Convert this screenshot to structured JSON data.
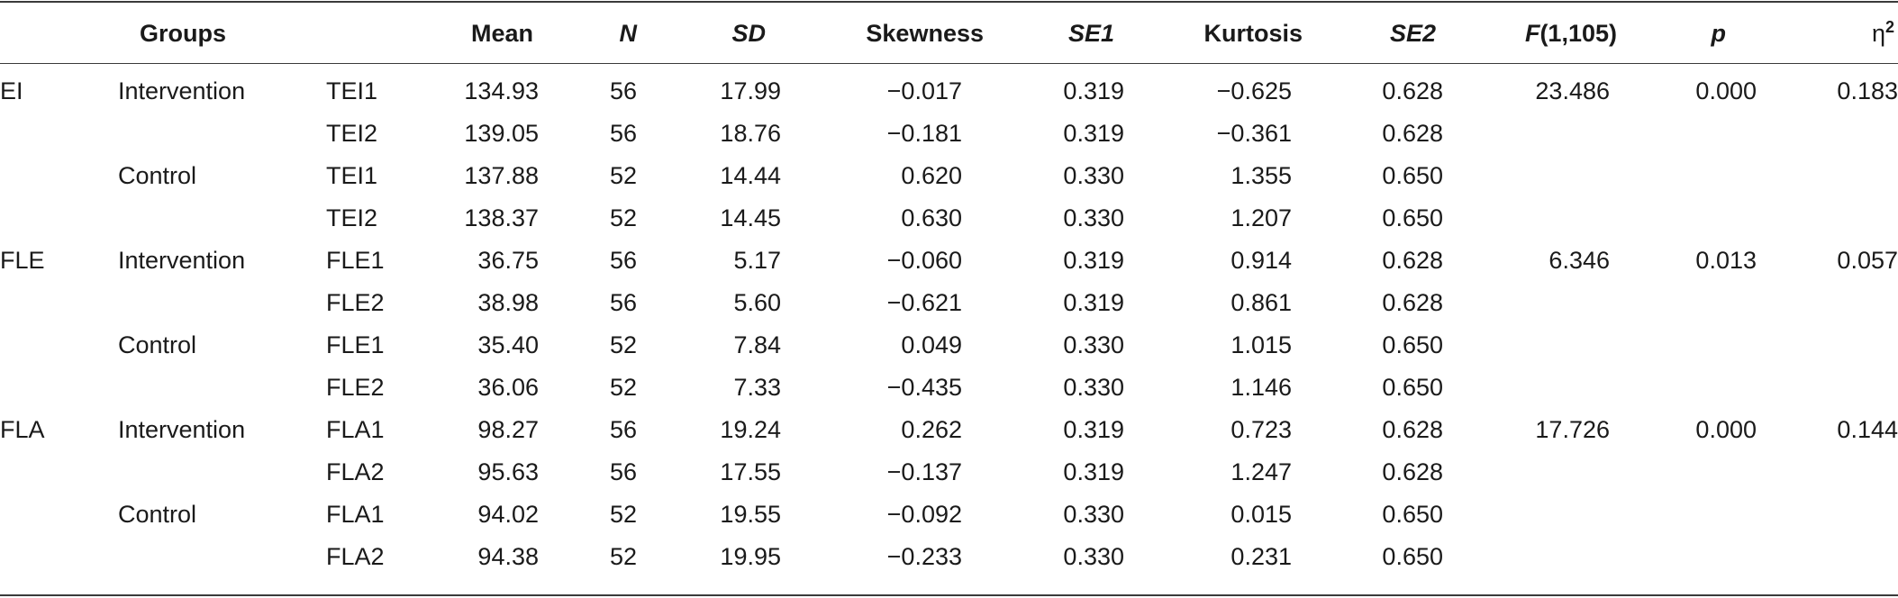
{
  "table": {
    "headers": {
      "groups": "Groups",
      "mean": "Mean",
      "n": "N",
      "sd": "SD",
      "skewness": "Skewness",
      "se1": "SE1",
      "kurtosis": "Kurtosis",
      "se2": "SE2",
      "f_label": "F",
      "f_df": "(1,105)",
      "p": "p",
      "eta": "η",
      "eta_sup": "2"
    },
    "rows": [
      {
        "construct": "EI",
        "group": "Intervention",
        "measure": "TEI1",
        "mean": "134.93",
        "n": "56",
        "sd": "17.99",
        "skewness": "−0.017",
        "se1": "0.319",
        "kurtosis": "−0.625",
        "se2": "0.628",
        "f": "23.486",
        "p": "0.000",
        "eta2": "0.183"
      },
      {
        "construct": "",
        "group": "",
        "measure": "TEI2",
        "mean": "139.05",
        "n": "56",
        "sd": "18.76",
        "skewness": "−0.181",
        "se1": "0.319",
        "kurtosis": "−0.361",
        "se2": "0.628",
        "f": "",
        "p": "",
        "eta2": ""
      },
      {
        "construct": "",
        "group": "Control",
        "measure": "TEI1",
        "mean": "137.88",
        "n": "52",
        "sd": "14.44",
        "skewness": "0.620",
        "se1": "0.330",
        "kurtosis": "1.355",
        "se2": "0.650",
        "f": "",
        "p": "",
        "eta2": ""
      },
      {
        "construct": "",
        "group": "",
        "measure": "TEI2",
        "mean": "138.37",
        "n": "52",
        "sd": "14.45",
        "skewness": "0.630",
        "se1": "0.330",
        "kurtosis": "1.207",
        "se2": "0.650",
        "f": "",
        "p": "",
        "eta2": ""
      },
      {
        "construct": "FLE",
        "group": "Intervention",
        "measure": "FLE1",
        "mean": "36.75",
        "n": "56",
        "sd": "5.17",
        "skewness": "−0.060",
        "se1": "0.319",
        "kurtosis": "0.914",
        "se2": "0.628",
        "f": "6.346",
        "p": "0.013",
        "eta2": "0.057"
      },
      {
        "construct": "",
        "group": "",
        "measure": "FLE2",
        "mean": "38.98",
        "n": "56",
        "sd": "5.60",
        "skewness": "−0.621",
        "se1": "0.319",
        "kurtosis": "0.861",
        "se2": "0.628",
        "f": "",
        "p": "",
        "eta2": ""
      },
      {
        "construct": "",
        "group": "Control",
        "measure": "FLE1",
        "mean": "35.40",
        "n": "52",
        "sd": "7.84",
        "skewness": "0.049",
        "se1": "0.330",
        "kurtosis": "1.015",
        "se2": "0.650",
        "f": "",
        "p": "",
        "eta2": ""
      },
      {
        "construct": "",
        "group": "",
        "measure": "FLE2",
        "mean": "36.06",
        "n": "52",
        "sd": "7.33",
        "skewness": "−0.435",
        "se1": "0.330",
        "kurtosis": "1.146",
        "se2": "0.650",
        "f": "",
        "p": "",
        "eta2": ""
      },
      {
        "construct": "FLA",
        "group": "Intervention",
        "measure": "FLA1",
        "mean": "98.27",
        "n": "56",
        "sd": "19.24",
        "skewness": "0.262",
        "se1": "0.319",
        "kurtosis": "0.723",
        "se2": "0.628",
        "f": "17.726",
        "p": "0.000",
        "eta2": "0.144"
      },
      {
        "construct": "",
        "group": "",
        "measure": "FLA2",
        "mean": "95.63",
        "n": "56",
        "sd": "17.55",
        "skewness": "−0.137",
        "se1": "0.319",
        "kurtosis": "1.247",
        "se2": "0.628",
        "f": "",
        "p": "",
        "eta2": ""
      },
      {
        "construct": "",
        "group": "Control",
        "measure": "FLA1",
        "mean": "94.02",
        "n": "52",
        "sd": "19.55",
        "skewness": "−0.092",
        "se1": "0.330",
        "kurtosis": "0.015",
        "se2": "0.650",
        "f": "",
        "p": "",
        "eta2": ""
      },
      {
        "construct": "",
        "group": "",
        "measure": "FLA2",
        "mean": "94.38",
        "n": "52",
        "sd": "19.95",
        "skewness": "−0.233",
        "se1": "0.330",
        "kurtosis": "0.231",
        "se2": "0.650",
        "f": "",
        "p": "",
        "eta2": ""
      }
    ]
  }
}
